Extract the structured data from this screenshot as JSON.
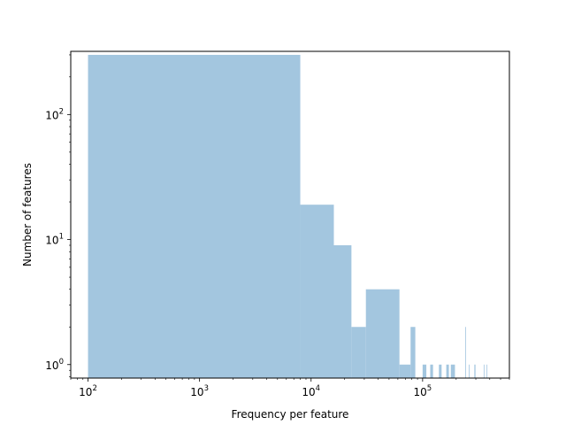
{
  "chart_data": {
    "type": "bar",
    "title": "",
    "xlabel": "Frequency per feature",
    "ylabel": "Number of features",
    "xscale": "log",
    "yscale": "log",
    "xlim": [
      70,
      600000
    ],
    "ylim": [
      0.78,
      320
    ],
    "grid": false,
    "bar_color": "#a3c6df",
    "x_major_ticks": [
      {
        "value": 100,
        "base": "10",
        "exp": "2"
      },
      {
        "value": 1000,
        "base": "10",
        "exp": "3"
      },
      {
        "value": 10000,
        "base": "10",
        "exp": "4"
      },
      {
        "value": 100000,
        "base": "10",
        "exp": "5"
      }
    ],
    "y_major_ticks": [
      {
        "value": 1,
        "base": "10",
        "exp": "0"
      },
      {
        "value": 10,
        "base": "10",
        "exp": "1"
      },
      {
        "value": 100,
        "base": "10",
        "exp": "2"
      }
    ],
    "bins": [
      {
        "x0": 100,
        "x1": 8000,
        "count": 300
      },
      {
        "x0": 8000,
        "x1": 16000,
        "count": 19
      },
      {
        "x0": 16000,
        "x1": 23000,
        "count": 9
      },
      {
        "x0": 23000,
        "x1": 31000,
        "count": 2
      },
      {
        "x0": 31000,
        "x1": 62000,
        "count": 4
      },
      {
        "x0": 62000,
        "x1": 78000,
        "count": 1
      },
      {
        "x0": 78000,
        "x1": 86000,
        "count": 2
      },
      {
        "x0": 100000,
        "x1": 108000,
        "count": 1
      },
      {
        "x0": 117000,
        "x1": 124000,
        "count": 1
      },
      {
        "x0": 140000,
        "x1": 148000,
        "count": 1
      },
      {
        "x0": 163000,
        "x1": 172000,
        "count": 1
      },
      {
        "x0": 179000,
        "x1": 195000,
        "count": 1
      },
      {
        "x0": 241000,
        "x1": 244000,
        "count": 2
      },
      {
        "x0": 260000,
        "x1": 264000,
        "count": 1
      },
      {
        "x0": 291000,
        "x1": 298000,
        "count": 1
      },
      {
        "x0": 353000,
        "x1": 357000,
        "count": 1
      },
      {
        "x0": 375000,
        "x1": 380000,
        "count": 1
      }
    ]
  }
}
